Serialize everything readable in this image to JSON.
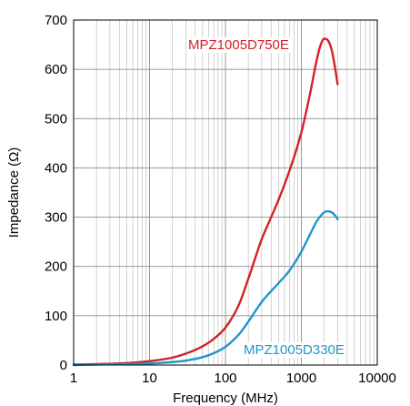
{
  "chart_data": {
    "type": "line",
    "xlabel": "Frequency (MHz)",
    "ylabel": "Impedance (Ω)",
    "x_scale": "log",
    "xlim": [
      1,
      10000
    ],
    "ylim": [
      0,
      700
    ],
    "x_ticks": [
      1,
      10,
      100,
      1000,
      10000
    ],
    "x_tick_labels": [
      "1",
      "10",
      "100",
      "1000",
      "10000"
    ],
    "y_ticks": [
      0,
      100,
      200,
      300,
      400,
      500,
      600,
      700
    ],
    "y_tick_labels": [
      "0",
      "100",
      "200",
      "300",
      "400",
      "500",
      "600",
      "700"
    ],
    "grid": true,
    "series": [
      {
        "name": "MPZ1005D750E",
        "color": "#d42027",
        "x": [
          1,
          2,
          5,
          10,
          20,
          30,
          50,
          70,
          100,
          150,
          200,
          300,
          400,
          500,
          700,
          1000,
          1300,
          1600,
          1800,
          2000,
          2200,
          2500,
          2800,
          3000
        ],
        "y": [
          1,
          2,
          4,
          8,
          15,
          23,
          38,
          53,
          76,
          122,
          175,
          255,
          300,
          335,
          395,
          472,
          550,
          620,
          650,
          662,
          660,
          640,
          600,
          570
        ]
      },
      {
        "name": "MPZ1005D330E",
        "color": "#1f96c9",
        "x": [
          1,
          2,
          5,
          10,
          20,
          30,
          50,
          70,
          100,
          150,
          200,
          300,
          400,
          500,
          700,
          1000,
          1300,
          1600,
          2000,
          2200,
          2500,
          2800,
          3000
        ],
        "y": [
          0,
          1,
          2,
          3,
          6,
          9,
          16,
          24,
          37,
          62,
          88,
          128,
          150,
          166,
          192,
          230,
          265,
          292,
          310,
          312,
          310,
          303,
          296
        ]
      }
    ]
  }
}
